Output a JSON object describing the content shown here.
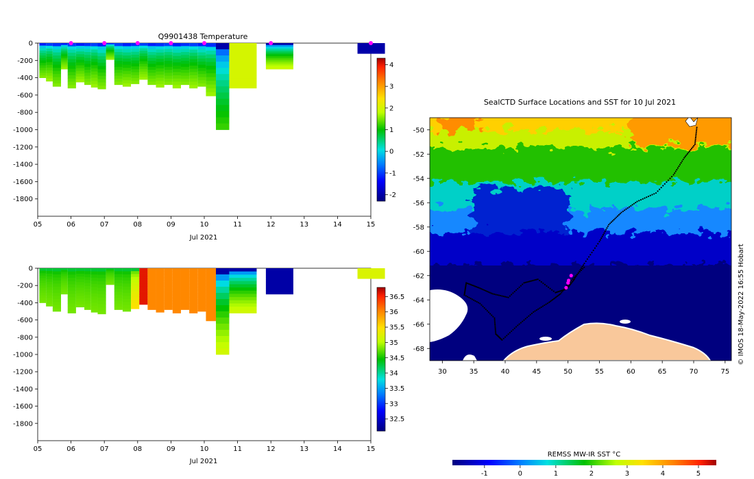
{
  "panels": {
    "temperature": {
      "title": "Q9901438  Temperature",
      "xlabel": "Jul 2021",
      "x_ticks": [
        "05",
        "06",
        "07",
        "08",
        "09",
        "10",
        "11",
        "12",
        "13",
        "14",
        "15"
      ],
      "y_ticks": [
        0,
        -200,
        -400,
        -600,
        -800,
        -1000,
        -1200,
        -1400,
        -1600,
        -1800
      ],
      "colorbar": {
        "ticks": [
          4,
          3,
          2,
          1,
          0,
          -1,
          -2
        ],
        "range": [
          -2.3,
          4.3
        ]
      },
      "profile_marks": [
        6,
        7,
        8,
        9,
        10,
        12,
        15
      ],
      "chart_data": {
        "type": "heatmap",
        "xlabel": "Jul 2021",
        "ylabel": "",
        "xlim": [
          5,
          15
        ],
        "ylim": [
          -2000,
          0
        ],
        "profiles": [
          {
            "day": 5.05,
            "depth": 400,
            "surface": -1.2,
            "deep": 1.6
          },
          {
            "day": 5.25,
            "depth": 440,
            "surface": -1.0,
            "deep": 1.7
          },
          {
            "day": 5.45,
            "depth": 500,
            "surface": -1.1,
            "deep": 1.6
          },
          {
            "day": 5.7,
            "depth": 300,
            "surface": -1.2,
            "deep": 1.7
          },
          {
            "day": 5.9,
            "depth": 520,
            "surface": -1.0,
            "deep": 1.6
          },
          {
            "day": 6.15,
            "depth": 450,
            "surface": -1.2,
            "deep": 1.7
          },
          {
            "day": 6.4,
            "depth": 480,
            "surface": -1.1,
            "deep": 1.6
          },
          {
            "day": 6.6,
            "depth": 510,
            "surface": -1.0,
            "deep": 1.7
          },
          {
            "day": 6.8,
            "depth": 530,
            "surface": -1.2,
            "deep": 1.6
          },
          {
            "day": 7.05,
            "depth": 190,
            "surface": -1.1,
            "deep": 1.7
          },
          {
            "day": 7.3,
            "depth": 480,
            "surface": -1.0,
            "deep": 1.6
          },
          {
            "day": 7.55,
            "depth": 500,
            "surface": -1.2,
            "deep": 1.7
          },
          {
            "day": 7.8,
            "depth": 470,
            "surface": -1.1,
            "deep": 1.6
          },
          {
            "day": 8.05,
            "depth": 420,
            "surface": -1.0,
            "deep": 1.7
          },
          {
            "day": 8.3,
            "depth": 480,
            "surface": -1.2,
            "deep": 1.6
          },
          {
            "day": 8.55,
            "depth": 510,
            "surface": -1.1,
            "deep": 1.7
          },
          {
            "day": 8.8,
            "depth": 480,
            "surface": -1.0,
            "deep": 1.6
          },
          {
            "day": 9.05,
            "depth": 520,
            "surface": -1.2,
            "deep": 1.7
          },
          {
            "day": 9.3,
            "depth": 480,
            "surface": -1.1,
            "deep": 1.6
          },
          {
            "day": 9.55,
            "depth": 520,
            "surface": -1.0,
            "deep": 1.7
          },
          {
            "day": 9.8,
            "depth": 500,
            "surface": -1.2,
            "deep": 1.6
          },
          {
            "day": 10.05,
            "depth": 610,
            "surface": -1.1,
            "deep": 1.7
          },
          {
            "day": 10.35,
            "depth": 1000,
            "surface": -2.0,
            "deep": 1.3
          },
          {
            "day": 10.75,
            "depth": 520,
            "surface": 2.0,
            "deep": 2.0
          },
          {
            "day": 11.85,
            "depth": 300,
            "surface": -2.0,
            "deep": 2.0
          },
          {
            "day": 14.6,
            "depth": 120,
            "surface": -2.0,
            "deep": -2.0
          }
        ]
      }
    },
    "salinity": {
      "xlabel": "Jul 2021",
      "x_ticks": [
        "05",
        "06",
        "07",
        "08",
        "09",
        "10",
        "11",
        "12",
        "13",
        "14",
        "15"
      ],
      "y_ticks": [
        0,
        -200,
        -400,
        -600,
        -800,
        -1000,
        -1200,
        -1400,
        -1600,
        -1800
      ],
      "colorbar": {
        "ticks": [
          "36.5",
          "36",
          "35.5",
          "35",
          "34.5",
          "34",
          "33.5",
          "33",
          "32.5"
        ],
        "range": [
          32.1,
          36.8
        ]
      },
      "chart_data": {
        "type": "heatmap",
        "xlabel": "Jul 2021",
        "ylabel": "",
        "xlim": [
          5,
          15
        ],
        "ylim": [
          -2000,
          0
        ],
        "profiles": [
          {
            "day": 5.05,
            "depth": 400,
            "surface": 34.3,
            "deep": 34.8
          },
          {
            "day": 5.25,
            "depth": 440,
            "surface": 34.3,
            "deep": 34.8
          },
          {
            "day": 5.45,
            "depth": 500,
            "surface": 34.3,
            "deep": 34.8
          },
          {
            "day": 5.7,
            "depth": 300,
            "surface": 34.3,
            "deep": 34.8
          },
          {
            "day": 5.9,
            "depth": 520,
            "surface": 34.3,
            "deep": 34.8
          },
          {
            "day": 6.15,
            "depth": 450,
            "surface": 34.3,
            "deep": 34.8
          },
          {
            "day": 6.4,
            "depth": 480,
            "surface": 34.3,
            "deep": 34.8
          },
          {
            "day": 6.6,
            "depth": 510,
            "surface": 34.3,
            "deep": 34.8
          },
          {
            "day": 6.8,
            "depth": 530,
            "surface": 34.3,
            "deep": 34.8
          },
          {
            "day": 7.05,
            "depth": 190,
            "surface": 34.3,
            "deep": 34.8
          },
          {
            "day": 7.3,
            "depth": 480,
            "surface": 34.3,
            "deep": 34.8
          },
          {
            "day": 7.55,
            "depth": 500,
            "surface": 34.3,
            "deep": 34.8
          },
          {
            "day": 7.8,
            "depth": 470,
            "surface": 34.3,
            "deep": 35.5
          },
          {
            "day": 8.05,
            "depth": 420,
            "surface": 36.6,
            "deep": 36.6
          },
          {
            "day": 8.3,
            "depth": 480,
            "surface": 36.0,
            "deep": 36.0
          },
          {
            "day": 8.55,
            "depth": 510,
            "surface": 36.0,
            "deep": 36.0
          },
          {
            "day": 8.8,
            "depth": 480,
            "surface": 36.0,
            "deep": 36.0
          },
          {
            "day": 9.05,
            "depth": 520,
            "surface": 36.0,
            "deep": 36.0
          },
          {
            "day": 9.3,
            "depth": 480,
            "surface": 36.0,
            "deep": 36.0
          },
          {
            "day": 9.55,
            "depth": 520,
            "surface": 36.0,
            "deep": 36.0
          },
          {
            "day": 9.8,
            "depth": 500,
            "surface": 36.0,
            "deep": 36.0
          },
          {
            "day": 10.05,
            "depth": 610,
            "surface": 36.0,
            "deep": 36.0
          },
          {
            "day": 10.35,
            "depth": 1000,
            "surface": 32.3,
            "deep": 35.2
          },
          {
            "day": 10.75,
            "depth": 520,
            "surface": 32.3,
            "deep": 35.2
          },
          {
            "day": 11.85,
            "depth": 300,
            "surface": 32.3,
            "deep": 32.3
          },
          {
            "day": 14.6,
            "depth": 120,
            "surface": 35.2,
            "deep": 35.2
          }
        ]
      }
    },
    "map": {
      "title": "SealCTD Surface Locations and SST for 10 Jul 2021",
      "x_ticks": [
        "30",
        "35",
        "40",
        "45",
        "50",
        "55",
        "60",
        "65",
        "70",
        "75"
      ],
      "y_ticks": [
        "-50",
        "-52",
        "-54",
        "-56",
        "-58",
        "-60",
        "-62",
        "-64",
        "-66",
        "-68"
      ],
      "credit": "© IMOS 18-May-2022 16:55 Hobart",
      "colorbar_label": "REMSS MW-IR SST °C",
      "colorbar_ticks": [
        "-1",
        "0",
        "1",
        "2",
        "3",
        "4",
        "5"
      ],
      "colors": {
        "land": "#f9c89b",
        "ice_ocean": "#00007f",
        "track": "#000000",
        "recent_fix": "#ff00ff"
      },
      "chart_data": {
        "type": "heatmap",
        "title": "SealCTD Surface Locations and SST for 10 Jul 2021",
        "xlim": [
          28,
          76
        ],
        "ylim": [
          -69,
          -49
        ],
        "color_range": [
          -1.9,
          5.5
        ],
        "sst_by_latitude": [
          {
            "lat": -49.5,
            "sst": 3.0
          },
          {
            "lat": -51,
            "sst": 2.3
          },
          {
            "lat": -53,
            "sst": 1.3
          },
          {
            "lat": -55,
            "sst": 0.8
          },
          {
            "lat": -57,
            "sst": 0.0
          },
          {
            "lat": -58.5,
            "sst": -0.6
          },
          {
            "lat": -60,
            "sst": -1.2
          },
          {
            "lat": -61,
            "sst": -1.9
          }
        ],
        "track": [
          [
            70.5,
            -49.8
          ],
          [
            70.2,
            -51.2
          ],
          [
            68.5,
            -52.3
          ],
          [
            66.8,
            -53.7
          ],
          [
            64.0,
            -55.2
          ],
          [
            61.0,
            -55.9
          ],
          [
            58.5,
            -56.8
          ],
          [
            56.5,
            -57.8
          ],
          [
            55.0,
            -59.2
          ],
          [
            52.6,
            -61.0
          ],
          [
            51.0,
            -62.3
          ],
          [
            49.8,
            -63.1
          ],
          [
            48.0,
            -63.4
          ],
          [
            45.2,
            -62.3
          ],
          [
            43.0,
            -62.6
          ],
          [
            40.5,
            -63.8
          ],
          [
            38.0,
            -63.5
          ],
          [
            35.8,
            -63.0
          ],
          [
            33.8,
            -62.6
          ],
          [
            33.5,
            -63.6
          ],
          [
            36.0,
            -64.3
          ],
          [
            38.3,
            -65.5
          ],
          [
            38.5,
            -66.8
          ],
          [
            39.5,
            -67.3
          ],
          [
            42.0,
            -66.1
          ],
          [
            44.5,
            -65.0
          ],
          [
            47.0,
            -64.2
          ],
          [
            48.8,
            -63.5
          ],
          [
            50.5,
            -62.4
          ],
          [
            52.8,
            -61.2
          ]
        ],
        "recent_fixes": [
          [
            50.5,
            -62.0
          ],
          [
            50.0,
            -62.6
          ],
          [
            49.7,
            -63.0
          ],
          [
            50.1,
            -62.4
          ]
        ]
      }
    }
  }
}
